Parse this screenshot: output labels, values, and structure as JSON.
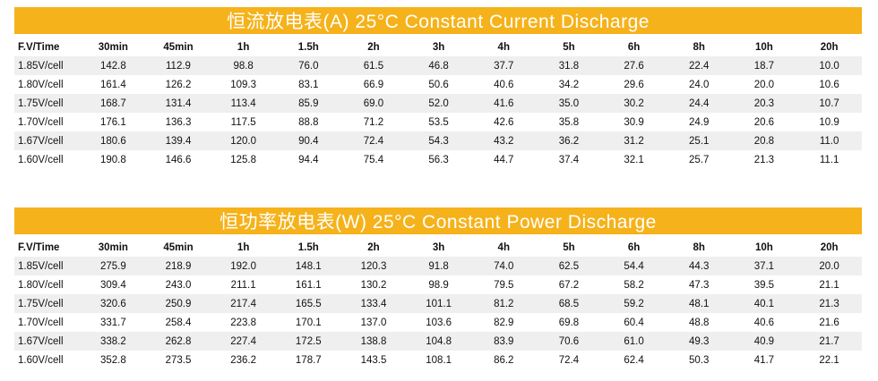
{
  "current_table": {
    "title": "恒流放电表(A) 25°C  Constant Current Discharge",
    "headers": [
      "F.V/Time",
      "30min",
      "45min",
      "1h",
      "1.5h",
      "2h",
      "3h",
      "4h",
      "5h",
      "6h",
      "8h",
      "10h",
      "20h"
    ],
    "rows": [
      [
        "1.85V/cell",
        "142.8",
        "112.9",
        "98.8",
        "76.0",
        "61.5",
        "46.8",
        "37.7",
        "31.8",
        "27.6",
        "22.4",
        "18.7",
        "10.0"
      ],
      [
        "1.80V/cell",
        "161.4",
        "126.2",
        "109.3",
        "83.1",
        "66.9",
        "50.6",
        "40.6",
        "34.2",
        "29.6",
        "24.0",
        "20.0",
        "10.6"
      ],
      [
        "1.75V/cell",
        "168.7",
        "131.4",
        "113.4",
        "85.9",
        "69.0",
        "52.0",
        "41.6",
        "35.0",
        "30.2",
        "24.4",
        "20.3",
        "10.7"
      ],
      [
        "1.70V/cell",
        "176.1",
        "136.3",
        "117.5",
        "88.8",
        "71.2",
        "53.5",
        "42.6",
        "35.8",
        "30.9",
        "24.9",
        "20.6",
        "10.9"
      ],
      [
        "1.67V/cell",
        "180.6",
        "139.4",
        "120.0",
        "90.4",
        "72.4",
        "54.3",
        "43.2",
        "36.2",
        "31.2",
        "25.1",
        "20.8",
        "11.0"
      ],
      [
        "1.60V/cell",
        "190.8",
        "146.6",
        "125.8",
        "94.4",
        "75.4",
        "56.3",
        "44.7",
        "37.4",
        "32.1",
        "25.7",
        "21.3",
        "11.1"
      ]
    ]
  },
  "power_table": {
    "title": "恒功率放电表(W) 25°C  Constant Power Discharge",
    "headers": [
      "F.V/Time",
      "30min",
      "45min",
      "1h",
      "1.5h",
      "2h",
      "3h",
      "4h",
      "5h",
      "6h",
      "8h",
      "10h",
      "20h"
    ],
    "rows": [
      [
        "1.85V/cell",
        "275.9",
        "218.9",
        "192.0",
        "148.1",
        "120.3",
        "91.8",
        "74.0",
        "62.5",
        "54.4",
        "44.3",
        "37.1",
        "20.0"
      ],
      [
        "1.80V/cell",
        "309.4",
        "243.0",
        "211.1",
        "161.1",
        "130.2",
        "98.9",
        "79.5",
        "67.2",
        "58.2",
        "47.3",
        "39.5",
        "21.1"
      ],
      [
        "1.75V/cell",
        "320.6",
        "250.9",
        "217.4",
        "165.5",
        "133.4",
        "101.1",
        "81.2",
        "68.5",
        "59.2",
        "48.1",
        "40.1",
        "21.3"
      ],
      [
        "1.70V/cell",
        "331.7",
        "258.4",
        "223.8",
        "170.1",
        "137.0",
        "103.6",
        "82.9",
        "69.8",
        "60.4",
        "48.8",
        "40.6",
        "21.6"
      ],
      [
        "1.67V/cell",
        "338.2",
        "262.8",
        "227.4",
        "172.5",
        "138.8",
        "104.8",
        "83.9",
        "70.6",
        "61.0",
        "49.3",
        "40.9",
        "21.7"
      ],
      [
        "1.60V/cell",
        "352.8",
        "273.5",
        "236.2",
        "178.7",
        "143.5",
        "108.1",
        "86.2",
        "72.4",
        "62.4",
        "50.3",
        "41.7",
        "22.1"
      ]
    ]
  },
  "colors": {
    "title_bar": "#f5b21a",
    "title_text": "#ffffff",
    "row_stripe": "#efefef"
  }
}
